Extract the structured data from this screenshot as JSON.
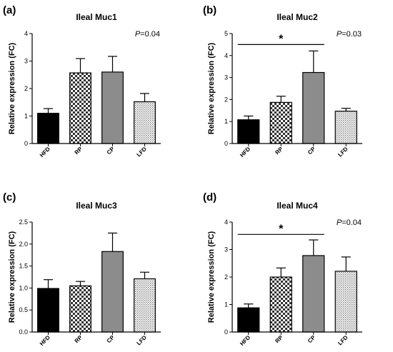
{
  "chart_data": [
    {
      "type": "bar",
      "panel_label": "(a)",
      "title": "Ileal Muc1",
      "ylabel": "Relative expression (FC)",
      "ylim": [
        0,
        4
      ],
      "yticks": [
        "0",
        "1",
        "2",
        "3",
        "4"
      ],
      "categories": [
        "HFD",
        "RP",
        "CP",
        "LFD"
      ],
      "values": [
        1.1,
        2.57,
        2.6,
        1.52
      ],
      "errors": [
        0.17,
        0.52,
        0.57,
        0.3
      ],
      "patterns": [
        "black",
        "checker",
        "gray",
        "dots"
      ],
      "pvalue_text": "P=0.04",
      "significance": null
    },
    {
      "type": "bar",
      "panel_label": "(b)",
      "title": "Ileal Muc2",
      "ylabel": "Relative expression (FC)",
      "ylim": [
        0,
        5
      ],
      "yticks": [
        "0",
        "1",
        "2",
        "3",
        "4",
        "5"
      ],
      "categories": [
        "HFD",
        "RP",
        "CP",
        "LFD"
      ],
      "values": [
        1.08,
        1.87,
        3.23,
        1.47
      ],
      "errors": [
        0.17,
        0.28,
        0.98,
        0.13
      ],
      "patterns": [
        "black",
        "checker",
        "gray",
        "dots"
      ],
      "pvalue_text": "P=0.03",
      "significance": {
        "from": 0,
        "to": 2,
        "y": 4.5,
        "label": "*"
      }
    },
    {
      "type": "bar",
      "panel_label": "(c)",
      "title": "Ileal Muc3",
      "ylabel": "Relative expression (FC)",
      "ylim": [
        0,
        2.5
      ],
      "yticks": [
        "0.0",
        "0.5",
        "1.0",
        "1.5",
        "2.0",
        "2.5"
      ],
      "categories": [
        "HFD",
        "RP",
        "CP",
        "LFD"
      ],
      "values": [
        0.99,
        1.05,
        1.83,
        1.21
      ],
      "errors": [
        0.2,
        0.1,
        0.42,
        0.15
      ],
      "patterns": [
        "black",
        "checker",
        "gray",
        "dots"
      ],
      "pvalue_text": "",
      "significance": null
    },
    {
      "type": "bar",
      "panel_label": "(d)",
      "title": "Ileal Muc4",
      "ylabel": "Relative expression (FC)",
      "ylim": [
        0,
        4
      ],
      "yticks": [
        "0",
        "1",
        "2",
        "3",
        "4"
      ],
      "categories": [
        "HFD",
        "RP",
        "CP",
        "LFD"
      ],
      "values": [
        0.88,
        2.0,
        2.78,
        2.21
      ],
      "errors": [
        0.14,
        0.33,
        0.57,
        0.52
      ],
      "patterns": [
        "black",
        "checker",
        "gray",
        "dots"
      ],
      "pvalue_text": "P=0.04",
      "significance": {
        "from": 0,
        "to": 2,
        "y": 3.55,
        "label": "*"
      }
    }
  ]
}
